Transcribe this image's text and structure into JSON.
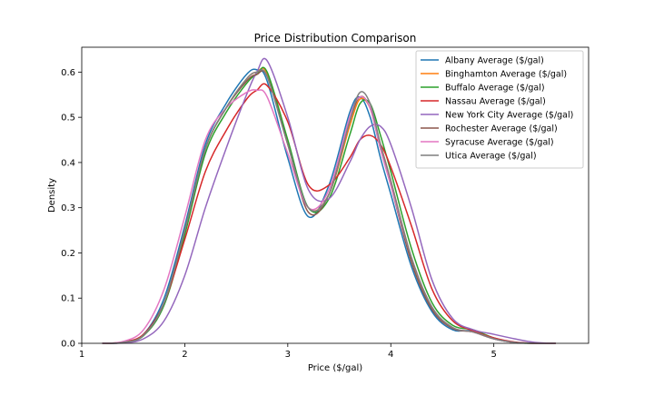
{
  "chart_data": {
    "type": "line",
    "title": "Price Distribution Comparison",
    "xlabel": "Price ($/gal)",
    "ylabel": "Density",
    "xlim": [
      1,
      5.92
    ],
    "ylim": [
      0,
      0.655
    ],
    "xticks": [
      1,
      2,
      3,
      4,
      5
    ],
    "xtick_labels": [
      "1",
      "2",
      "3",
      "4",
      "5"
    ],
    "yticks": [
      0.0,
      0.1,
      0.2,
      0.3,
      0.4,
      0.5,
      0.6
    ],
    "ytick_labels": [
      "0.0",
      "0.1",
      "0.2",
      "0.3",
      "0.4",
      "0.5",
      "0.6"
    ],
    "grid": false,
    "legend_position": "top-right",
    "x": [
      1.2,
      1.4,
      1.6,
      1.8,
      2.0,
      2.2,
      2.4,
      2.6,
      2.7,
      2.8,
      3.0,
      3.2,
      3.4,
      3.6,
      3.7,
      3.8,
      3.9,
      4.0,
      4.2,
      4.4,
      4.6,
      4.8,
      5.0,
      5.2,
      5.4,
      5.6
    ],
    "series": [
      {
        "name": "Albany Average ($/gal)",
        "color": "#1f77b4",
        "values": [
          0.0,
          0.002,
          0.02,
          0.1,
          0.26,
          0.44,
          0.53,
          0.595,
          0.605,
          0.58,
          0.41,
          0.28,
          0.35,
          0.51,
          0.545,
          0.5,
          0.41,
          0.33,
          0.17,
          0.07,
          0.03,
          0.028,
          0.01,
          0.002,
          0.0,
          0.0
        ]
      },
      {
        "name": "Binghamton Average ($/gal)",
        "color": "#ff7f0e",
        "values": [
          0.0,
          0.002,
          0.018,
          0.09,
          0.25,
          0.43,
          0.52,
          0.585,
          0.6,
          0.595,
          0.44,
          0.3,
          0.33,
          0.48,
          0.54,
          0.52,
          0.44,
          0.36,
          0.19,
          0.08,
          0.035,
          0.025,
          0.01,
          0.002,
          0.0,
          0.0
        ]
      },
      {
        "name": "Buffalo Average ($/gal)",
        "color": "#2ca02c",
        "values": [
          0.0,
          0.002,
          0.017,
          0.085,
          0.24,
          0.42,
          0.51,
          0.575,
          0.595,
          0.6,
          0.45,
          0.3,
          0.32,
          0.46,
          0.53,
          0.53,
          0.46,
          0.38,
          0.21,
          0.09,
          0.04,
          0.03,
          0.012,
          0.002,
          0.0,
          0.0
        ]
      },
      {
        "name": "Nassau Average ($/gal)",
        "color": "#d62728",
        "values": [
          0.0,
          0.003,
          0.02,
          0.09,
          0.23,
          0.38,
          0.47,
          0.54,
          0.56,
          0.57,
          0.49,
          0.35,
          0.35,
          0.41,
          0.45,
          0.46,
          0.44,
          0.39,
          0.26,
          0.12,
          0.05,
          0.028,
          0.012,
          0.003,
          0.0,
          0.0
        ]
      },
      {
        "name": "New York City Average ($/gal)",
        "color": "#9467bd",
        "values": [
          0.0,
          0.001,
          0.01,
          0.05,
          0.15,
          0.3,
          0.43,
          0.55,
          0.6,
          0.625,
          0.5,
          0.34,
          0.32,
          0.4,
          0.45,
          0.48,
          0.48,
          0.44,
          0.3,
          0.14,
          0.055,
          0.03,
          0.02,
          0.01,
          0.002,
          0.0
        ]
      },
      {
        "name": "Rochester Average ($/gal)",
        "color": "#8c564b",
        "values": [
          0.0,
          0.002,
          0.018,
          0.09,
          0.25,
          0.43,
          0.52,
          0.58,
          0.595,
          0.59,
          0.44,
          0.29,
          0.33,
          0.49,
          0.545,
          0.52,
          0.43,
          0.35,
          0.18,
          0.075,
          0.033,
          0.025,
          0.01,
          0.002,
          0.0,
          0.0
        ]
      },
      {
        "name": "Syracuse Average ($/gal)",
        "color": "#e377c2",
        "values": [
          0.0,
          0.004,
          0.03,
          0.12,
          0.28,
          0.45,
          0.52,
          0.555,
          0.56,
          0.545,
          0.42,
          0.3,
          0.34,
          0.5,
          0.545,
          0.52,
          0.43,
          0.35,
          0.19,
          0.08,
          0.035,
          0.025,
          0.01,
          0.002,
          0.0,
          0.0
        ]
      },
      {
        "name": "Utica Average ($/gal)",
        "color": "#7f7f7f",
        "values": [
          0.0,
          0.002,
          0.018,
          0.09,
          0.25,
          0.43,
          0.52,
          0.585,
          0.6,
          0.59,
          0.44,
          0.3,
          0.33,
          0.49,
          0.555,
          0.53,
          0.44,
          0.36,
          0.19,
          0.08,
          0.035,
          0.025,
          0.01,
          0.002,
          0.0,
          0.0
        ]
      }
    ]
  }
}
